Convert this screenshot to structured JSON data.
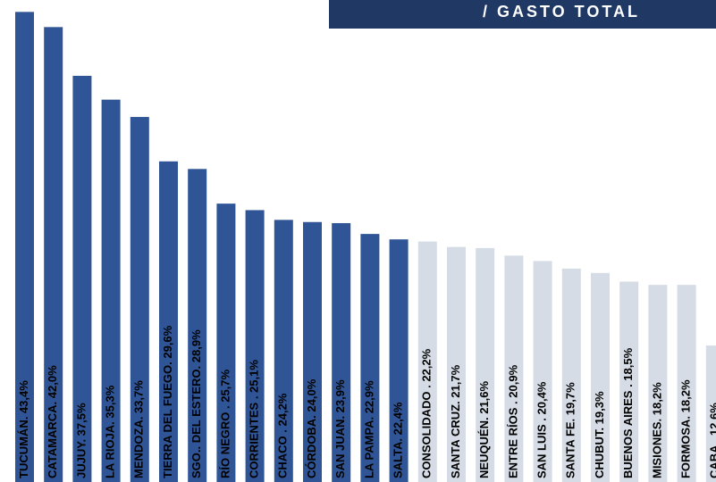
{
  "chart_data": {
    "type": "bar",
    "title": "/ GASTO TOTAL",
    "categories": [
      "TUCUMÁN. 43,4%",
      "CATAMARCA. 42,0%",
      "JUJUY. 37,5%",
      "LA RIOJA. 35,3%",
      "MENDOZA. 33,7%",
      "TIERRA DEL FUEGO. 29,6%",
      "SGO.. DEL ESTERO. 28,9%",
      "RÍO NEGRO . 25,7%",
      "CORRIENTES . 25,1%",
      "CHACO . 24,2%",
      "CÓRDOBA. 24,0%",
      "SAN JUAN. 23,9%",
      "LA PAMPA. 22,9%",
      "SALTA. 22,4%",
      "CONSOLIDADO . 22,2%",
      "SANTA CRUZ. 21,7%",
      "NEUQUÉN. 21,6%",
      "ENTRE RÍOS . 20,9%",
      "SAN LUIS . 20,4%",
      "SANTA FE. 19,7%",
      "CHUBUT. 19,3%",
      "BUENOS AIRES . 18,5%",
      "MISIONES. 18,2%",
      "FORMOSA. 18,2%",
      "CABA . 12,6%"
    ],
    "values": [
      43.4,
      42.0,
      37.5,
      35.3,
      33.7,
      29.6,
      28.9,
      25.7,
      25.1,
      24.2,
      24.0,
      23.9,
      22.9,
      22.4,
      22.2,
      21.7,
      21.6,
      20.9,
      20.4,
      19.7,
      19.3,
      18.5,
      18.2,
      18.2,
      12.6
    ],
    "colors": [
      "#2f5597",
      "#2f5597",
      "#2f5597",
      "#2f5597",
      "#2f5597",
      "#2f5597",
      "#2f5597",
      "#2f5597",
      "#2f5597",
      "#2f5597",
      "#2f5597",
      "#2f5597",
      "#2f5597",
      "#2f5597",
      "#d6dce5",
      "#d6dce5",
      "#d6dce5",
      "#d6dce5",
      "#d6dce5",
      "#d6dce5",
      "#d6dce5",
      "#d6dce5",
      "#d6dce5",
      "#d6dce5",
      "#d6dce5"
    ],
    "ylim": [
      0,
      44.5
    ]
  }
}
